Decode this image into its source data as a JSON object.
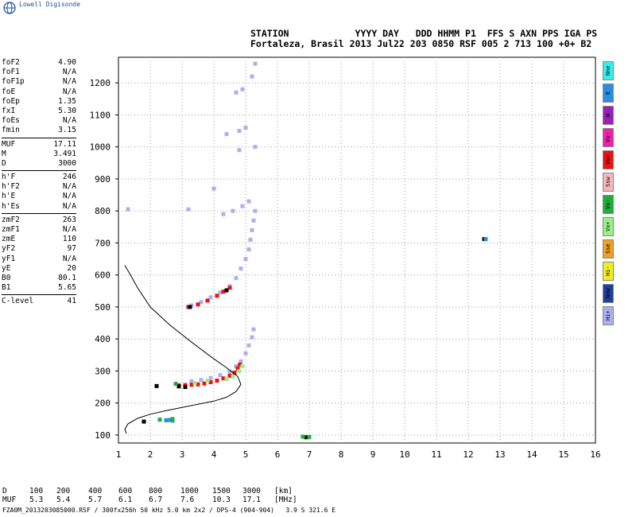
{
  "brand": "Lowell Digisonde",
  "header": {
    "line1": "STATION            YYYY DAY   DDD HHMM P1  FFS S AXN PPS IGA PS",
    "line2": "Fortaleza, Brasil 2013 Jul22 203 0850 RSF 005 2 713 100 +0+ B2"
  },
  "params": [
    [
      {
        "k": "foF2",
        "v": "4.90"
      },
      {
        "k": "foF1",
        "v": "N/A"
      },
      {
        "k": "foF1p",
        "v": "N/A"
      },
      {
        "k": "foE",
        "v": "N/A"
      },
      {
        "k": "foEp",
        "v": "1.35"
      },
      {
        "k": "fxI",
        "v": "5.30"
      },
      {
        "k": "foEs",
        "v": "N/A"
      },
      {
        "k": "fmin",
        "v": "3.15"
      }
    ],
    [
      {
        "k": "MUF",
        "v": "17.11"
      },
      {
        "k": "M",
        "v": "3.491"
      },
      {
        "k": "D",
        "v": "3000"
      }
    ],
    [
      {
        "k": "h'F",
        "v": "246"
      },
      {
        "k": "h'F2",
        "v": "N/A"
      },
      {
        "k": "h'E",
        "v": "N/A"
      },
      {
        "k": "h'Es",
        "v": "N/A"
      }
    ],
    [
      {
        "k": "zmF2",
        "v": "263"
      },
      {
        "k": "zmF1",
        "v": "N/A"
      },
      {
        "k": "zmE",
        "v": "110"
      },
      {
        "k": "yF2",
        "v": "97"
      },
      {
        "k": "yF1",
        "v": "N/A"
      },
      {
        "k": "yE",
        "v": "20"
      },
      {
        "k": "B0",
        "v": "80.1"
      },
      {
        "k": "B1",
        "v": "5.65"
      }
    ],
    [
      {
        "k": "C-level",
        "v": "41"
      }
    ]
  ],
  "legend": [
    {
      "label": "Nne",
      "color": "#33eeee"
    },
    {
      "label": "E",
      "color": "#2a8ee0"
    },
    {
      "label": "W",
      "color": "#9a1fb8"
    },
    {
      "label": "Vo-",
      "color": "#ee22aa"
    },
    {
      "label": "Vo+",
      "color": "#ee1111"
    },
    {
      "label": "Ssw",
      "color": "#f4b6b6"
    },
    {
      "label": "Vx-",
      "color": "#1fae3a"
    },
    {
      "label": "Vx+",
      "color": "#99ee88"
    },
    {
      "label": "Sse",
      "color": "#f2a024"
    },
    {
      "label": "Hi-",
      "color": "#eeee22"
    },
    {
      "label": "Nnw",
      "color": "#1f3f9a"
    },
    {
      "label": "Hi+",
      "color": "#aab0ee"
    }
  ],
  "muf_table": {
    "d_label": "D",
    "muf_label": "MUF",
    "d_values": [
      "100",
      "200",
      "400",
      "600",
      "800",
      "1000",
      "1500",
      "3000",
      "[km]"
    ],
    "muf_values": [
      "5.3",
      "5.4",
      "5.7",
      "6.1",
      "6.7",
      "7.6",
      "10.3",
      "17.1",
      "[MHz]"
    ]
  },
  "footer": "FZA0M_2013203085000.RSF / 300fx256h 50 kHz 5.0 km 2x2 / DPS-4 (904-904)   3.9 S 321.6 E",
  "chart_data": {
    "type": "scatter",
    "xlim": [
      1,
      16
    ],
    "ylim": [
      75,
      1280
    ],
    "x_ticks": [
      1,
      2,
      3,
      4,
      5,
      6,
      7,
      8,
      9,
      10,
      11,
      12,
      13,
      14,
      15,
      16
    ],
    "y_ticks": [
      100,
      200,
      300,
      400,
      500,
      600,
      700,
      800,
      900,
      1000,
      1100,
      1200
    ],
    "grid": true,
    "series": [
      {
        "color": "#aab0ee",
        "points": [
          [
            3.3,
            268
          ],
          [
            3.6,
            272
          ],
          [
            3.9,
            278
          ],
          [
            4.2,
            287
          ],
          [
            4.5,
            298
          ],
          [
            4.7,
            315
          ],
          [
            4.85,
            330
          ],
          [
            5.0,
            355
          ],
          [
            5.1,
            380
          ],
          [
            5.2,
            405
          ],
          [
            5.25,
            430
          ],
          [
            3.3,
            505
          ],
          [
            3.6,
            515
          ],
          [
            3.9,
            530
          ],
          [
            4.2,
            545
          ],
          [
            4.5,
            565
          ],
          [
            4.7,
            590
          ],
          [
            4.85,
            620
          ],
          [
            5.0,
            650
          ],
          [
            5.1,
            680
          ],
          [
            5.15,
            710
          ],
          [
            5.2,
            740
          ],
          [
            5.25,
            770
          ],
          [
            5.3,
            800
          ],
          [
            4.3,
            790
          ],
          [
            4.6,
            800
          ],
          [
            4.9,
            815
          ],
          [
            5.1,
            830
          ],
          [
            4.4,
            1040
          ],
          [
            4.8,
            1050
          ],
          [
            5.0,
            1060
          ],
          [
            4.7,
            1170
          ],
          [
            4.9,
            1180
          ],
          [
            5.2,
            1220
          ],
          [
            5.3,
            1260
          ],
          [
            5.3,
            1000
          ],
          [
            3.2,
            805
          ],
          [
            1.3,
            805
          ],
          [
            4.0,
            870
          ],
          [
            4.8,
            990
          ]
        ]
      },
      {
        "color": "#ee1111",
        "points": [
          [
            2.9,
            255
          ],
          [
            3.1,
            256
          ],
          [
            3.3,
            257
          ],
          [
            3.5,
            258
          ],
          [
            3.7,
            261
          ],
          [
            3.9,
            265
          ],
          [
            4.1,
            270
          ],
          [
            4.3,
            277
          ],
          [
            4.5,
            285
          ],
          [
            4.65,
            295
          ],
          [
            4.75,
            308
          ],
          [
            4.82,
            320
          ],
          [
            3.2,
            500
          ],
          [
            3.5,
            508
          ],
          [
            3.8,
            520
          ],
          [
            4.1,
            535
          ],
          [
            4.3,
            548
          ],
          [
            4.5,
            560
          ]
        ]
      },
      {
        "color": "#99ee88",
        "points": [
          [
            4.4,
            275
          ],
          [
            4.6,
            283
          ],
          [
            4.8,
            300
          ],
          [
            4.9,
            315
          ],
          [
            3.4,
            262
          ],
          [
            3.8,
            270
          ]
        ]
      },
      {
        "color": "#000000",
        "points": [
          [
            2.9,
            252
          ],
          [
            3.1,
            250
          ],
          [
            3.25,
            500
          ],
          [
            2.2,
            253
          ],
          [
            1.8,
            142
          ],
          [
            4.4,
            552
          ],
          [
            6.9,
            93
          ],
          [
            12.5,
            712
          ]
        ]
      },
      {
        "color": "#2a8ee0",
        "points": [
          [
            2.5,
            146
          ],
          [
            2.6,
            147
          ],
          [
            2.7,
            145
          ],
          [
            12.55,
            712
          ]
        ]
      },
      {
        "color": "#1fae3a",
        "points": [
          [
            2.3,
            148
          ],
          [
            2.7,
            150
          ],
          [
            2.8,
            260
          ],
          [
            6.8,
            95
          ],
          [
            7.0,
            94
          ]
        ]
      }
    ],
    "profile": [
      [
        1.25,
        105
      ],
      [
        1.2,
        118
      ],
      [
        1.3,
        135
      ],
      [
        1.6,
        152
      ],
      [
        2.0,
        165
      ],
      [
        2.5,
        176
      ],
      [
        3.0,
        186
      ],
      [
        3.5,
        196
      ],
      [
        4.0,
        206
      ],
      [
        4.4,
        218
      ],
      [
        4.7,
        236
      ],
      [
        4.85,
        258
      ],
      [
        4.75,
        283
      ],
      [
        4.4,
        310
      ],
      [
        3.9,
        345
      ],
      [
        3.3,
        390
      ],
      [
        2.6,
        445
      ],
      [
        2.0,
        500
      ],
      [
        1.6,
        560
      ],
      [
        1.35,
        605
      ],
      [
        1.2,
        630
      ]
    ]
  }
}
